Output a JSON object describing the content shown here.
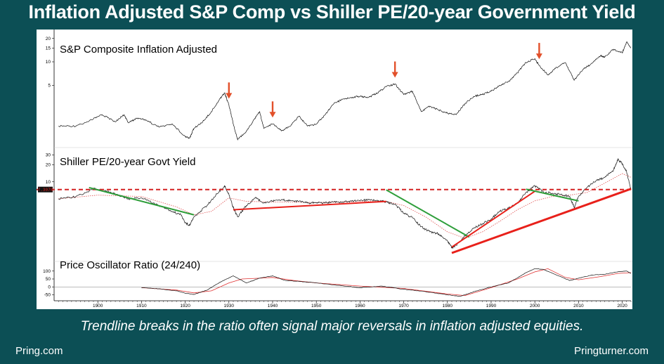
{
  "header": {
    "title": "Inflation Adjusted S&P Comp  vs Shiller PE/20-year Government Yield"
  },
  "footer": {
    "caption": "Trendline breaks in the ratio often signal major reversals in inflation adjusted equities.",
    "left": "Pring.com",
    "right": "Pringturner.com"
  },
  "colors": {
    "background": "#0c4f55",
    "trend_green": "#2e9e3a",
    "trend_red": "#e8201a",
    "arrow": "#e2502a",
    "dashed": "#d42020"
  },
  "chart_data": [
    {
      "type": "line",
      "title": "S&P Composite Inflation Adjusted",
      "y_scale": "log",
      "ylim": [
        0.9,
        22
      ],
      "yticks": [
        5,
        10,
        15,
        20
      ],
      "x_range": [
        1890,
        2022
      ],
      "series": [
        {
          "x": [
            1891,
            1895,
            1899,
            1901,
            1904,
            1906,
            1907,
            1909,
            1911,
            1914,
            1917,
            1920,
            1921,
            1922,
            1924,
            1926,
            1928,
            1929,
            1930,
            1931,
            1932,
            1934,
            1936,
            1937,
            1938,
            1940,
            1942,
            1944,
            1946,
            1948,
            1950,
            1952,
            1954,
            1956,
            1958,
            1960,
            1962,
            1964,
            1966,
            1968,
            1970,
            1972,
            1974,
            1976,
            1978,
            1980,
            1982,
            1984,
            1986,
            1988,
            1990,
            1992,
            1994,
            1996,
            1998,
            2000,
            2001,
            2003,
            2005,
            2007,
            2009,
            2011,
            2013,
            2015,
            2016,
            2018,
            2020,
            2021,
            2022
          ],
          "values": [
            1.5,
            1.5,
            1.85,
            2.1,
            1.7,
            2.1,
            1.65,
            1.9,
            1.8,
            1.45,
            1.6,
            1.1,
            1.05,
            1.4,
            1.7,
            2.3,
            3.4,
            4.0,
            2.8,
            1.6,
            1.0,
            1.3,
            1.9,
            2.3,
            1.4,
            1.6,
            1.3,
            1.5,
            2.0,
            1.5,
            1.6,
            2.1,
            2.9,
            3.3,
            3.5,
            3.6,
            3.5,
            4.0,
            4.8,
            5.2,
            3.8,
            4.2,
            2.3,
            2.7,
            2.4,
            2.2,
            2.1,
            2.9,
            3.6,
            3.8,
            4.2,
            5.0,
            5.6,
            7.2,
            9.8,
            11.0,
            9.0,
            6.8,
            8.5,
            9.8,
            5.8,
            8.0,
            9.5,
            12.0,
            11.5,
            14.5,
            13.0,
            18.0,
            15.0
          ]
        }
      ],
      "annotations": [
        {
          "type": "down-arrow",
          "x": 1930
        },
        {
          "type": "down-arrow",
          "x": 1940
        },
        {
          "type": "down-arrow",
          "x": 1968
        },
        {
          "type": "down-arrow",
          "x": 2001
        }
      ]
    },
    {
      "type": "line",
      "title": "Shiller PE/20-year Govt Yield",
      "y_scale": "log",
      "ylim": [
        0.45,
        36
      ],
      "yticks": [
        10,
        20,
        30
      ],
      "x_range": [
        1890,
        2022
      ],
      "current_value_label": "7.3078",
      "current_value": 7.3,
      "series": [
        {
          "name": "ratio",
          "x": [
            1891,
            1895,
            1899,
            1901,
            1903,
            1907,
            1910,
            1914,
            1917,
            1919,
            1920,
            1921,
            1922,
            1925,
            1927,
            1929,
            1930,
            1931,
            1932,
            1934,
            1936,
            1938,
            1940,
            1942,
            1944,
            1946,
            1948,
            1950,
            1952,
            1954,
            1956,
            1958,
            1960,
            1962,
            1964,
            1966,
            1968,
            1970,
            1972,
            1974,
            1976,
            1978,
            1980,
            1981,
            1982,
            1984,
            1986,
            1988,
            1990,
            1992,
            1994,
            1996,
            1998,
            2000,
            2002,
            2004,
            2006,
            2008,
            2009,
            2010,
            2012,
            2014,
            2016,
            2018,
            2019,
            2020,
            2021,
            2022
          ],
          "values": [
            5.0,
            5.5,
            7.5,
            7.0,
            6.5,
            5.0,
            5.2,
            3.8,
            3.0,
            2.6,
            1.9,
            1.7,
            2.4,
            3.8,
            5.8,
            8.5,
            6.0,
            3.5,
            2.4,
            3.8,
            5.2,
            4.3,
            4.6,
            4.8,
            4.6,
            4.5,
            4.2,
            4.3,
            4.2,
            4.4,
            4.4,
            4.6,
            4.6,
            4.8,
            4.7,
            4.4,
            4.0,
            2.8,
            2.3,
            1.6,
            1.3,
            1.2,
            0.9,
            0.68,
            0.75,
            1.1,
            1.5,
            1.8,
            2.2,
            3.0,
            3.4,
            4.2,
            6.5,
            8.5,
            6.5,
            6.3,
            6.0,
            5.5,
            3.5,
            5.5,
            8.0,
            10.5,
            12.0,
            16.0,
            25.0,
            21.0,
            15.0,
            7.3
          ]
        },
        {
          "name": "moving average",
          "x": [
            1891,
            1900,
            1910,
            1918,
            1922,
            1926,
            1930,
            1934,
            1940,
            1950,
            1960,
            1966,
            1970,
            1975,
            1980,
            1984,
            1988,
            1992,
            1996,
            2000,
            2004,
            2008,
            2012,
            2016,
            2020,
            2022
          ],
          "values": [
            5.0,
            5.8,
            5.5,
            3.6,
            2.6,
            3.0,
            5.2,
            4.5,
            4.4,
            4.3,
            4.5,
            4.5,
            3.8,
            2.4,
            1.3,
            1.0,
            1.3,
            2.0,
            3.2,
            4.6,
            5.5,
            5.8,
            6.5,
            9.5,
            14.0,
            12.0
          ]
        }
      ],
      "reference_line": {
        "y": 7.3,
        "style": "dashed"
      },
      "trendlines": [
        {
          "color": "green",
          "x": [
            1898,
            1922
          ],
          "y": [
            7.9,
            2.6
          ]
        },
        {
          "color": "red",
          "x": [
            1931,
            1966
          ],
          "y": [
            3.2,
            4.5
          ]
        },
        {
          "color": "green",
          "x": [
            1966,
            1985
          ],
          "y": [
            7.2,
            1.05
          ]
        },
        {
          "color": "red",
          "x": [
            1981,
            2000
          ],
          "y": [
            0.7,
            6.8
          ]
        },
        {
          "color": "red",
          "x": [
            1981,
            2022
          ],
          "y": [
            0.55,
            7.5
          ]
        },
        {
          "color": "green",
          "x": [
            1998,
            2010
          ],
          "y": [
            7.4,
            4.6
          ]
        }
      ]
    },
    {
      "type": "line",
      "title": "Price Oscillator Ratio (24/240)",
      "ylim": [
        -70,
        130
      ],
      "yticks": [
        -50,
        0,
        50,
        100
      ],
      "x_range": [
        1890,
        2022
      ],
      "xticks": [
        1900,
        1910,
        1920,
        1930,
        1940,
        1950,
        1960,
        1970,
        1980,
        1990,
        2000,
        2010,
        2020
      ],
      "series": [
        {
          "name": "oscillator",
          "x": [
            1910,
            1914,
            1918,
            1920,
            1922,
            1925,
            1928,
            1931,
            1934,
            1937,
            1940,
            1943,
            1946,
            1950,
            1955,
            1960,
            1965,
            1970,
            1975,
            1980,
            1983,
            1986,
            1990,
            1994,
            1998,
            2000,
            2002,
            2005,
            2008,
            2010,
            2013,
            2016,
            2019,
            2021,
            2022
          ],
          "values": [
            -5,
            -12,
            -25,
            -40,
            -48,
            -20,
            30,
            70,
            25,
            55,
            70,
            40,
            35,
            25,
            10,
            -5,
            5,
            -15,
            -30,
            -50,
            -60,
            -30,
            0,
            25,
            90,
            115,
            110,
            75,
            40,
            55,
            75,
            80,
            95,
            100,
            85
          ]
        },
        {
          "name": "signal",
          "x": [
            1910,
            1918,
            1922,
            1926,
            1930,
            1933,
            1937,
            1940,
            1945,
            1950,
            1960,
            1970,
            1980,
            1984,
            1990,
            1996,
            2000,
            2003,
            2007,
            2010,
            2015,
            2019,
            2022
          ],
          "values": [
            -5,
            -20,
            -38,
            -25,
            25,
            50,
            55,
            60,
            40,
            25,
            5,
            -10,
            -45,
            -55,
            -5,
            50,
            95,
            115,
            60,
            45,
            65,
            85,
            90
          ]
        }
      ]
    }
  ]
}
